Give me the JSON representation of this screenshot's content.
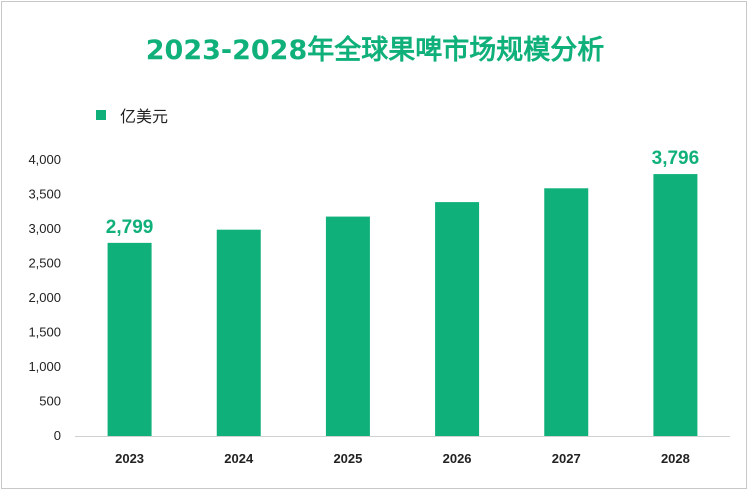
{
  "chart_data": {
    "type": "bar",
    "title": "2023-2028年全球果啤市场规模分析",
    "unit_legend": "亿美元",
    "categories": [
      "2023",
      "2024",
      "2025",
      "2026",
      "2027",
      "2028"
    ],
    "series": [
      {
        "name": "亿美元",
        "values": [
          2799,
          2990,
          3180,
          3390,
          3590,
          3796
        ]
      }
    ],
    "data_labels": [
      {
        "category": "2023",
        "text": "2,799"
      },
      {
        "category": "2028",
        "text": "3,796"
      }
    ],
    "ylim": [
      0,
      4000
    ],
    "yticks": [
      0,
      500,
      1000,
      1500,
      2000,
      2500,
      3000,
      3500,
      4000
    ],
    "ytick_labels": [
      "0",
      "500",
      "1,000",
      "1,500",
      "2,000",
      "2,500",
      "3,000",
      "3,500",
      "4,000"
    ],
    "grid": false,
    "legend": "top-left"
  },
  "colors": {
    "bar": "#10b07a",
    "title": "#10b07a",
    "axis": "#d0d0d0"
  }
}
